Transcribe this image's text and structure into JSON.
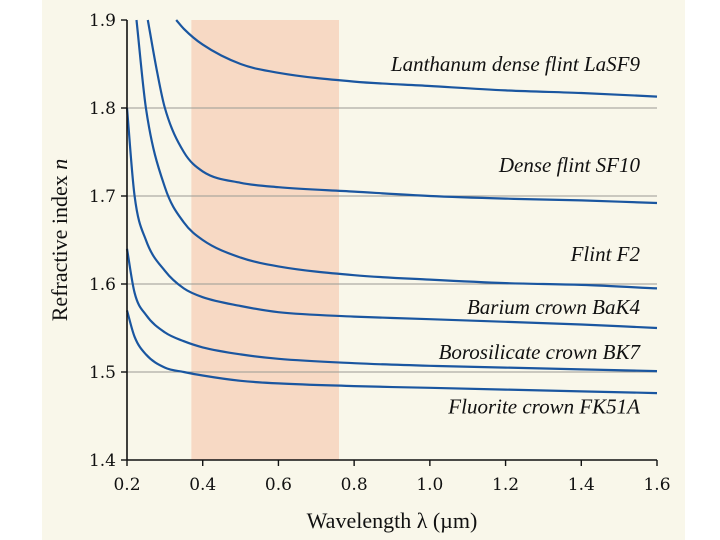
{
  "chart_data": {
    "type": "line",
    "title": "",
    "xlabel": "Wavelength λ (µm)",
    "ylabel_main": "Refractive index ",
    "ylabel_var": "n",
    "xlim": [
      0.2,
      1.6
    ],
    "ylim": [
      1.4,
      1.9
    ],
    "xticks": [
      0.2,
      0.4,
      0.6,
      0.8,
      1.0,
      1.2,
      1.4,
      1.6
    ],
    "xtick_labels": [
      "0.2",
      "0.4",
      "0.6",
      "0.8",
      "1.0",
      "1.2",
      "1.4",
      "1.6"
    ],
    "yticks": [
      1.4,
      1.5,
      1.6,
      1.7,
      1.8,
      1.9
    ],
    "ytick_labels": [
      "1.4",
      "1.5",
      "1.6",
      "1.7",
      "1.8",
      "1.9"
    ],
    "grid_y": [
      1.5,
      1.6,
      1.7,
      1.8
    ],
    "visible_band": {
      "xmin": 0.37,
      "xmax": 0.76
    },
    "series": [
      {
        "name": "Lanthanum dense flint LaSF9",
        "x": [
          0.33,
          0.35,
          0.4,
          0.5,
          0.6,
          0.8,
          1.0,
          1.2,
          1.4,
          1.6
        ],
        "y": [
          1.9,
          1.89,
          1.872,
          1.85,
          1.84,
          1.83,
          1.825,
          1.82,
          1.817,
          1.813
        ]
      },
      {
        "name": "Dense flint SF10",
        "x": [
          0.255,
          0.28,
          0.3,
          0.35,
          0.4,
          0.5,
          0.6,
          0.8,
          1.0,
          1.2,
          1.4,
          1.6
        ],
        "y": [
          1.9,
          1.84,
          1.8,
          1.75,
          1.728,
          1.715,
          1.71,
          1.705,
          1.7,
          1.697,
          1.695,
          1.692
        ]
      },
      {
        "name": "Flint F2",
        "x": [
          0.225,
          0.25,
          0.3,
          0.35,
          0.4,
          0.5,
          0.6,
          0.8,
          1.0,
          1.2,
          1.4,
          1.6
        ],
        "y": [
          1.9,
          1.8,
          1.71,
          1.67,
          1.65,
          1.63,
          1.62,
          1.61,
          1.605,
          1.601,
          1.599,
          1.595
        ]
      },
      {
        "name": "Barium crown BaK4",
        "x": [
          0.2,
          0.22,
          0.25,
          0.3,
          0.35,
          0.4,
          0.5,
          0.6,
          0.8,
          1.0,
          1.2,
          1.4,
          1.6
        ],
        "y": [
          1.8,
          1.7,
          1.65,
          1.615,
          1.595,
          1.585,
          1.575,
          1.568,
          1.563,
          1.56,
          1.557,
          1.554,
          1.55
        ]
      },
      {
        "name": "Borosilicate crown BK7",
        "x": [
          0.2,
          0.22,
          0.25,
          0.3,
          0.35,
          0.4,
          0.5,
          0.6,
          0.8,
          1.0,
          1.2,
          1.4,
          1.6
        ],
        "y": [
          1.64,
          1.59,
          1.565,
          1.545,
          1.535,
          1.528,
          1.52,
          1.515,
          1.51,
          1.507,
          1.505,
          1.503,
          1.501
        ]
      },
      {
        "name": "Fluorite crown FK51A",
        "x": [
          0.2,
          0.22,
          0.25,
          0.3,
          0.35,
          0.4,
          0.5,
          0.6,
          0.8,
          1.0,
          1.2,
          1.4,
          1.6
        ],
        "y": [
          1.57,
          1.54,
          1.52,
          1.505,
          1.5,
          1.496,
          1.49,
          1.487,
          1.484,
          1.482,
          1.48,
          1.478,
          1.476
        ]
      }
    ],
    "colors": {
      "background": "#f9f7ea",
      "visible_band": "#f7d9c4",
      "curve": "#1a56a0",
      "grid": "#9a9a94",
      "axis": "#111111"
    }
  }
}
